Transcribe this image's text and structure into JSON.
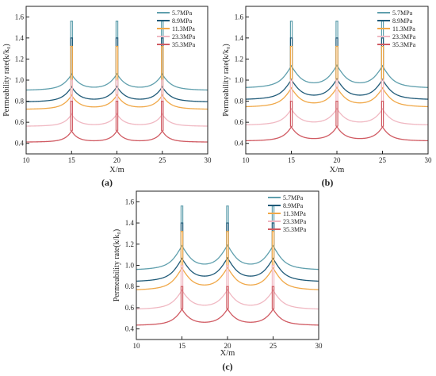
{
  "chart_data": [
    {
      "type": "line",
      "panel_label": "(a)",
      "xlabel": "X/m",
      "ylabel": "Permeability rate(k/k₀)",
      "xlim": [
        10,
        30
      ],
      "ylim": [
        0.3,
        1.7
      ],
      "xticks": [
        "10",
        "15",
        "20",
        "25",
        "30"
      ],
      "yticks": [
        "0.4",
        "0.6",
        "0.8",
        "1.0",
        "1.2",
        "1.4",
        "1.6"
      ],
      "legend_position": "top-right",
      "peak_x": [
        15,
        20,
        25
      ],
      "series": [
        {
          "name": "5.7MPa",
          "color": "#5f9fad",
          "edge": 0.9,
          "trough": 0.99,
          "peak": 1.56
        },
        {
          "name": "8.9MPa",
          "color": "#1f5a78",
          "edge": 0.79,
          "trough": 0.87,
          "peak": 1.4
        },
        {
          "name": "11.3MPa",
          "color": "#f0a848",
          "edge": 0.72,
          "trough": 0.79,
          "peak": 1.32
        },
        {
          "name": "23.3MPa",
          "color": "#f0b8c2",
          "edge": 0.56,
          "trough": 0.61,
          "peak": 1.0
        },
        {
          "name": "35.3MPa",
          "color": "#d05a62",
          "edge": 0.41,
          "trough": 0.45,
          "peak": 0.8
        }
      ]
    },
    {
      "type": "line",
      "panel_label": "(b)",
      "xlabel": "X/m",
      "ylabel": "Permeability rate(k/k₀)",
      "xlim": [
        10,
        30
      ],
      "ylim": [
        0.3,
        1.7
      ],
      "xticks": [
        "10",
        "15",
        "20",
        "25",
        "30"
      ],
      "yticks": [
        "0.4",
        "0.6",
        "0.8",
        "1.0",
        "1.2",
        "1.4",
        "1.6"
      ],
      "legend_position": "top-right",
      "peak_x": [
        15,
        20,
        25
      ],
      "series": [
        {
          "name": "5.7MPa",
          "color": "#5f9fad",
          "edge": 0.92,
          "trough": 1.07,
          "peak": 1.56
        },
        {
          "name": "8.9MPa",
          "color": "#1f5a78",
          "edge": 0.81,
          "trough": 0.94,
          "peak": 1.4
        },
        {
          "name": "11.3MPa",
          "color": "#f0a848",
          "edge": 0.74,
          "trough": 0.86,
          "peak": 1.32
        },
        {
          "name": "23.3MPa",
          "color": "#f0b8c2",
          "edge": 0.57,
          "trough": 0.66,
          "peak": 1.0
        },
        {
          "name": "35.3MPa",
          "color": "#d05a62",
          "edge": 0.42,
          "trough": 0.49,
          "peak": 0.8
        }
      ]
    },
    {
      "type": "line",
      "panel_label": "(c)",
      "xlabel": "X/m",
      "ylabel": "Permeability rate(k/k₀)",
      "xlim": [
        10,
        30
      ],
      "ylim": [
        0.3,
        1.7
      ],
      "xticks": [
        "10",
        "15",
        "20",
        "25",
        "30"
      ],
      "yticks": [
        "0.4",
        "0.6",
        "0.8",
        "1.0",
        "1.2",
        "1.4",
        "1.6"
      ],
      "legend_position": "top-right",
      "peak_x": [
        15,
        20,
        25
      ],
      "series": [
        {
          "name": "5.7MPa",
          "color": "#5f9fad",
          "edge": 0.95,
          "trough": 1.12,
          "peak": 1.56
        },
        {
          "name": "8.9MPa",
          "color": "#1f5a78",
          "edge": 0.84,
          "trough": 1.0,
          "peak": 1.4
        },
        {
          "name": "11.3MPa",
          "color": "#f0a848",
          "edge": 0.76,
          "trough": 0.91,
          "peak": 1.32
        },
        {
          "name": "23.3MPa",
          "color": "#f0b8c2",
          "edge": 0.58,
          "trough": 0.7,
          "peak": 1.0
        },
        {
          "name": "35.3MPa",
          "color": "#d05a62",
          "edge": 0.43,
          "trough": 0.52,
          "peak": 0.8
        }
      ]
    }
  ]
}
